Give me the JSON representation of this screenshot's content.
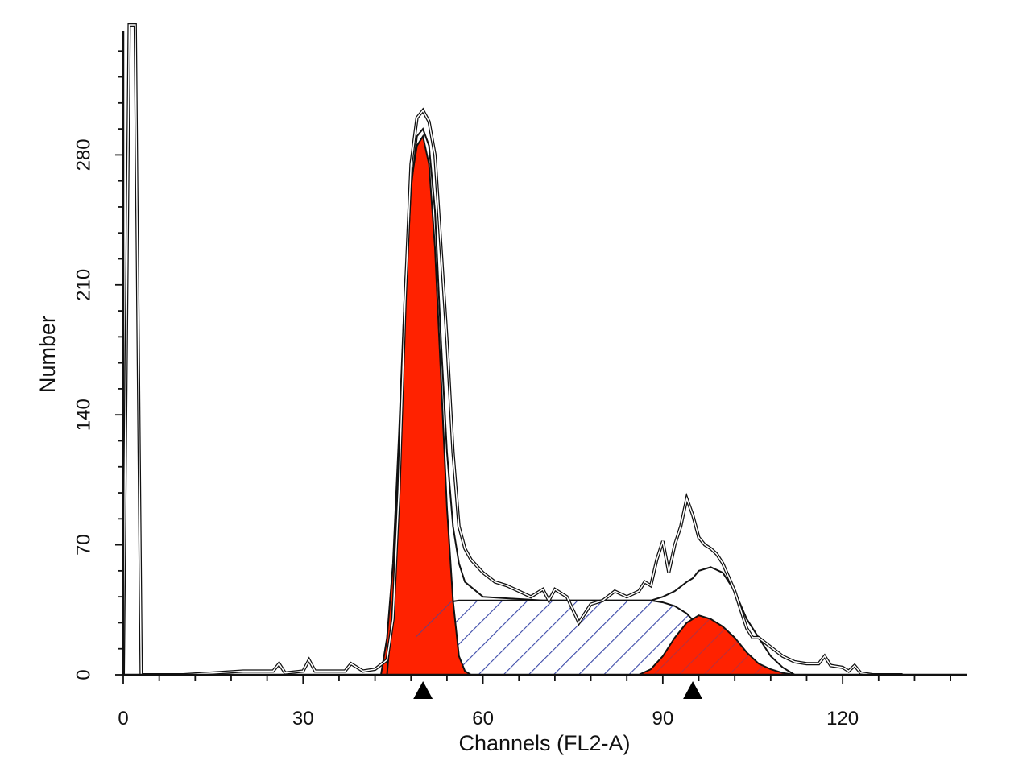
{
  "chart_data": {
    "type": "area",
    "title": "",
    "xlabel": "Channels (FL2-A)",
    "ylabel": "Number",
    "xlim": [
      0,
      140
    ],
    "ylim": [
      0,
      350
    ],
    "x_ticks": [
      0,
      30,
      60,
      90,
      120
    ],
    "y_ticks": [
      0,
      70,
      140,
      210,
      280
    ],
    "grid": false,
    "legend": "none",
    "peak_markers": [
      50,
      95
    ],
    "colors": {
      "g1_fill": "#ff2200",
      "g2_fill": "#ff2200",
      "s_phase_hatch": "#3a48a8",
      "outline": "#111111"
    },
    "series": [
      {
        "kind": "histogram",
        "x": [
          0,
          1,
          2,
          3,
          4,
          5,
          10,
          15,
          20,
          25,
          26,
          27,
          30,
          31,
          32,
          35,
          37,
          38,
          39,
          40,
          42,
          44,
          45,
          46,
          47,
          48,
          49,
          50,
          51,
          52,
          53,
          54,
          55,
          56,
          57,
          58,
          60,
          62,
          64,
          66,
          68,
          70,
          71,
          72,
          74,
          76,
          78,
          80,
          82,
          84,
          86,
          87,
          88,
          89,
          90,
          91,
          92,
          93,
          94,
          95,
          96,
          97,
          98,
          99,
          100,
          102,
          104,
          105,
          106,
          108,
          110,
          112,
          114,
          116,
          117,
          118,
          120,
          121,
          122,
          123,
          125,
          130
        ],
        "y": [
          0,
          350,
          350,
          0,
          0,
          0,
          0,
          1,
          2,
          2,
          6,
          1,
          2,
          8,
          2,
          2,
          2,
          6,
          4,
          2,
          3,
          8,
          30,
          100,
          200,
          275,
          300,
          304,
          298,
          280,
          230,
          180,
          120,
          80,
          68,
          62,
          55,
          50,
          48,
          45,
          42,
          46,
          40,
          46,
          42,
          28,
          38,
          40,
          45,
          42,
          45,
          50,
          48,
          62,
          72,
          55,
          70,
          80,
          95,
          86,
          74,
          70,
          68,
          65,
          60,
          45,
          25,
          20,
          20,
          15,
          10,
          7,
          6,
          6,
          10,
          5,
          4,
          2,
          5,
          1,
          0,
          0
        ]
      },
      {
        "kind": "model-total",
        "x": [
          44,
          45,
          46,
          47,
          48,
          49,
          50,
          51,
          52,
          53,
          54,
          55,
          56,
          57,
          60,
          70,
          80,
          88,
          90,
          92,
          94,
          95,
          96,
          98,
          100,
          102,
          104,
          106,
          108,
          110,
          112
        ],
        "y": [
          0,
          40,
          120,
          200,
          262,
          290,
          294,
          285,
          250,
          180,
          120,
          80,
          60,
          50,
          42,
          40,
          40,
          40,
          42,
          45,
          50,
          52,
          56,
          58,
          55,
          45,
          30,
          20,
          10,
          4,
          0
        ]
      },
      {
        "kind": "G1",
        "x": [
          43,
          44,
          45,
          46,
          47,
          48,
          49,
          50,
          51,
          52,
          53,
          54,
          55,
          56,
          57,
          58
        ],
        "y": [
          0,
          20,
          60,
          130,
          210,
          265,
          285,
          290,
          275,
          230,
          160,
          90,
          40,
          10,
          2,
          0
        ]
      },
      {
        "kind": "S",
        "x": [
          44,
          46,
          48,
          50,
          52,
          54,
          56,
          58,
          60,
          70,
          80,
          88,
          90,
          92,
          94,
          96,
          98,
          100,
          102,
          104,
          106,
          108
        ],
        "y": [
          0,
          5,
          15,
          28,
          36,
          39,
          40,
          40,
          40,
          40,
          40,
          40,
          39,
          37,
          33,
          26,
          18,
          10,
          5,
          2,
          1,
          0
        ]
      },
      {
        "kind": "G2",
        "x": [
          86,
          88,
          90,
          92,
          94,
          96,
          98,
          100,
          102,
          104,
          106,
          108,
          110,
          112
        ],
        "y": [
          0,
          3,
          10,
          20,
          28,
          32,
          30,
          26,
          20,
          12,
          6,
          3,
          1,
          0
        ]
      }
    ]
  }
}
